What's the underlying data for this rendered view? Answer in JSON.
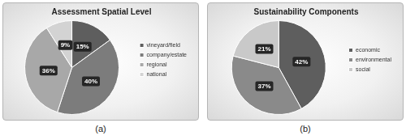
{
  "chart_data": [
    {
      "type": "pie",
      "title": "Assessment Spatial Level",
      "categories": [
        "vineyard/field",
        "company/estate",
        "regional",
        "national"
      ],
      "values": [
        15,
        40,
        36,
        9
      ],
      "value_labels": [
        "15%",
        "40%",
        "36%",
        "9%"
      ],
      "colors": [
        "#5e5e5e",
        "#7c7c7c",
        "#a8a8a8",
        "#d3d3d3"
      ],
      "data_labels": true,
      "legend": "right",
      "caption": "(a)"
    },
    {
      "type": "pie",
      "title": "Sustainability Components",
      "categories": [
        "economic",
        "environmental",
        "social"
      ],
      "values": [
        42,
        37,
        21
      ],
      "value_labels": [
        "42%",
        "37%",
        "21%"
      ],
      "colors": [
        "#5e5e5e",
        "#8a8a8a",
        "#c9c9c9"
      ],
      "data_labels": true,
      "legend": "right",
      "caption": "(b)"
    }
  ]
}
